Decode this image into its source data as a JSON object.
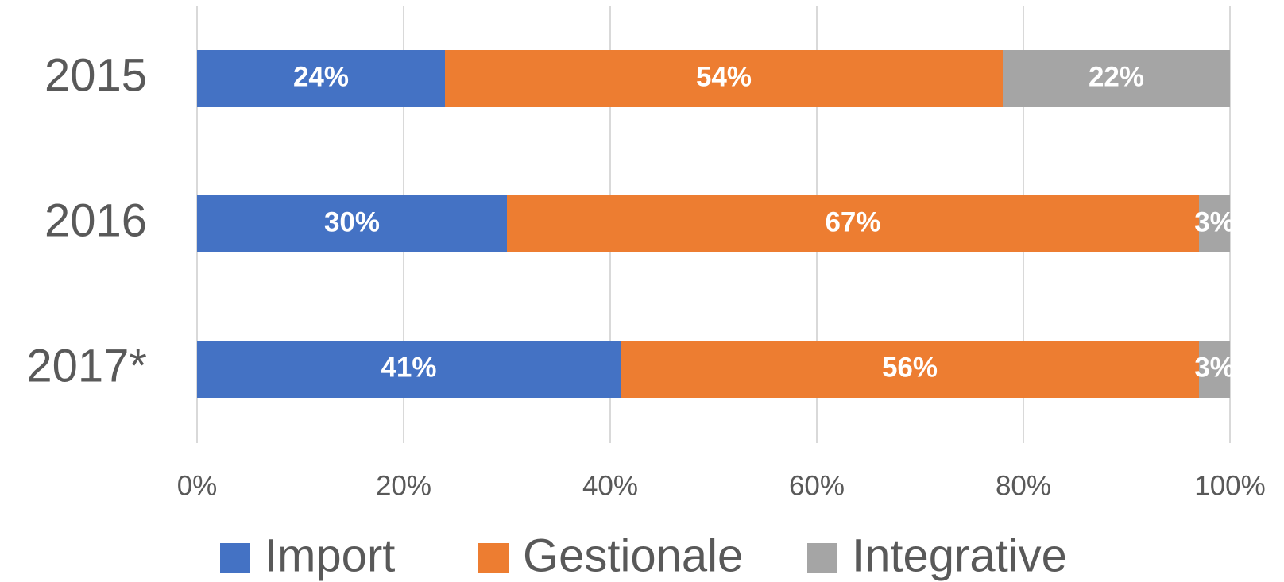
{
  "chart_data": {
    "type": "stacked_bar_horizontal",
    "categories": [
      "2015",
      "2016",
      "2017*"
    ],
    "series": [
      {
        "name": "Import",
        "color": "#4472c4",
        "values": [
          24,
          30,
          41
        ],
        "value_labels": [
          "24%",
          "30%",
          "41%"
        ]
      },
      {
        "name": "Gestionale",
        "color": "#ed7d31",
        "values": [
          54,
          67,
          56
        ],
        "value_labels": [
          "54%",
          "67%",
          "56%"
        ]
      },
      {
        "name": "Integrative",
        "color": "#a5a5a5",
        "values": [
          22,
          3,
          3
        ],
        "value_labels": [
          "22%",
          "3%",
          "3%"
        ]
      }
    ],
    "xlim": [
      0,
      100
    ],
    "xticks": [
      {
        "value": 0,
        "label": "0%"
      },
      {
        "value": 20,
        "label": "20%"
      },
      {
        "value": 40,
        "label": "40%"
      },
      {
        "value": 60,
        "label": "60%"
      },
      {
        "value": 80,
        "label": "80%"
      },
      {
        "value": 100,
        "label": "100%"
      }
    ],
    "grid": true,
    "legend": "bottom"
  }
}
